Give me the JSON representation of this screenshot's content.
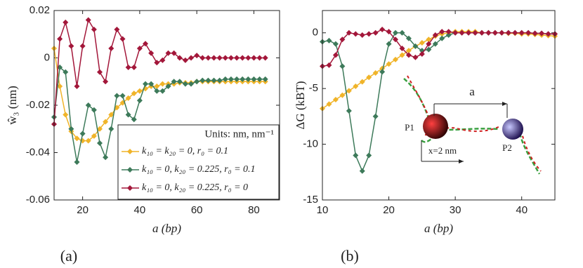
{
  "chart_data": [
    {
      "type": "line",
      "panel_label": "(a)",
      "x_label": "a (bp)",
      "y_label": "ŵ₃ (nm)",
      "annotation": "Units: nm, nm⁻¹",
      "legend": "lower right",
      "xlim": [
        10,
        89
      ],
      "ylim": [
        -0.06,
        0.02
      ],
      "xticks": [
        20,
        40,
        60,
        80
      ],
      "yticks": [
        -0.06,
        -0.04,
        -0.02,
        0,
        0.02
      ],
      "x": [
        10,
        12,
        14,
        16,
        18,
        20,
        22,
        24,
        26,
        28,
        30,
        32,
        34,
        36,
        38,
        40,
        42,
        44,
        46,
        48,
        50,
        52,
        54,
        56,
        58,
        60,
        62,
        64,
        66,
        68,
        70,
        72,
        74,
        76,
        78,
        80,
        82,
        84
      ],
      "series": [
        {
          "name": "k₁₀ = k₂₀ = 0, r₀ = 0.1",
          "color": "#f0b429",
          "values": [
            0.004,
            -0.012,
            -0.024,
            -0.031,
            -0.034,
            -0.035,
            -0.035,
            -0.033,
            -0.03,
            -0.027,
            -0.024,
            -0.021,
            -0.019,
            -0.017,
            -0.015,
            -0.014,
            -0.013,
            -0.012,
            -0.012,
            -0.011,
            -0.011,
            -0.011,
            -0.0105,
            -0.0105,
            -0.0105,
            -0.01,
            -0.01,
            -0.01,
            -0.01,
            -0.01,
            -0.01,
            -0.01,
            -0.01,
            -0.01,
            -0.01,
            -0.01,
            -0.01,
            -0.01
          ]
        },
        {
          "name": "k₁₀ = 0, k₂₀ = 0.225, r₀ = 0.1",
          "color": "#3d7a5a",
          "values": [
            -0.025,
            -0.004,
            -0.006,
            -0.03,
            -0.044,
            -0.032,
            -0.02,
            -0.022,
            -0.036,
            -0.042,
            -0.03,
            -0.016,
            -0.016,
            -0.024,
            -0.026,
            -0.018,
            -0.011,
            -0.011,
            -0.014,
            -0.014,
            -0.012,
            -0.01,
            -0.01,
            -0.011,
            -0.011,
            -0.01,
            -0.0095,
            -0.0095,
            -0.0095,
            -0.0095,
            -0.009,
            -0.009,
            -0.009,
            -0.009,
            -0.009,
            -0.009,
            -0.009,
            -0.009
          ]
        },
        {
          "name": "k₁₀ = 0, k₂₀ = 0.225, r₀ = 0",
          "color": "#a3173a",
          "values": [
            -0.028,
            0.008,
            0.015,
            0.005,
            -0.012,
            0.005,
            0.016,
            0.012,
            -0.006,
            -0.01,
            0.004,
            0.012,
            0.008,
            -0.004,
            -0.004,
            0.004,
            0.006,
            0.002,
            -0.002,
            -0.001,
            0.002,
            0.002,
            0,
            -0.001,
            0,
            0.001,
            0,
            0,
            0,
            0,
            0,
            0,
            0,
            0,
            0,
            0,
            0,
            0
          ]
        }
      ]
    },
    {
      "type": "line",
      "panel_label": "(b)",
      "x_label": "a (bp)",
      "y_label": "ΔG (kBT)",
      "inset_labels": [
        "a",
        "P1",
        "P2",
        "x=2 nm"
      ],
      "xlim": [
        10,
        45
      ],
      "ylim": [
        -15,
        2
      ],
      "xticks": [
        10,
        20,
        30,
        40
      ],
      "yticks": [
        -15,
        -10,
        -5,
        0
      ],
      "x": [
        10,
        11,
        12,
        13,
        14,
        15,
        16,
        17,
        18,
        19,
        20,
        21,
        22,
        23,
        24,
        25,
        26,
        27,
        28,
        29,
        30,
        31,
        32,
        33,
        34,
        35,
        36,
        37,
        38,
        39,
        40,
        41,
        42,
        43,
        44,
        45
      ],
      "series": [
        {
          "name": "k₁₀ = k₂₀ = 0, r₀ = 0.1",
          "color": "#f0b429",
          "values": [
            -6.8,
            -6.4,
            -6.0,
            -5.6,
            -5.2,
            -4.8,
            -4.4,
            -4.0,
            -3.6,
            -3.2,
            -2.8,
            -2.4,
            -2.0,
            -1.6,
            -1.2,
            -0.9,
            -0.6,
            -0.3,
            -0.1,
            0,
            0.1,
            0.1,
            0.1,
            0.1,
            0,
            0,
            0,
            0,
            -0.05,
            -0.05,
            -0.1,
            -0.1,
            -0.15,
            -0.2,
            -0.25,
            -0.3
          ]
        },
        {
          "name": "k₁₀ = 0, k₂₀ = 0.225, r₀ = 0.1",
          "color": "#3d7a5a",
          "values": [
            -0.8,
            -0.7,
            -1.0,
            -3.0,
            -7.0,
            -11.0,
            -12.4,
            -11.0,
            -7.5,
            -3.5,
            -1.0,
            0,
            0,
            -0.5,
            -1.2,
            -1.6,
            -1.5,
            -1.0,
            -0.5,
            -0.2,
            0,
            0,
            0,
            0,
            0,
            0,
            0,
            0,
            0,
            0,
            0,
            0,
            -0.05,
            -0.05,
            -0.1,
            -0.1
          ]
        },
        {
          "name": "k₁₀ = 0, k₂₀ = 0.225, r₀ = 0",
          "color": "#a3173a",
          "values": [
            -3.0,
            -2.9,
            -2.0,
            -0.6,
            0,
            -0.1,
            -0.2,
            -0.1,
            0,
            0.3,
            0.1,
            -0.6,
            -1.4,
            -2.0,
            -2.2,
            -1.9,
            -1.0,
            -0.2,
            0.1,
            0.1,
            0,
            0,
            0,
            0,
            0,
            0,
            0,
            0,
            0,
            0,
            0,
            0,
            -0.05,
            -0.05,
            -0.1,
            -0.1
          ]
        }
      ]
    }
  ]
}
